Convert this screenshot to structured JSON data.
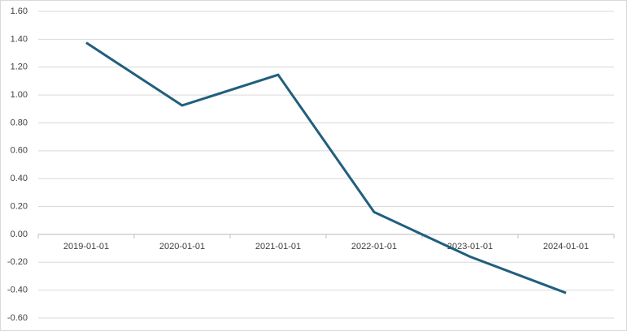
{
  "chart_data": {
    "type": "line",
    "categories": [
      "2019-01-01",
      "2020-01-01",
      "2021-01-01",
      "2022-01-01",
      "2023-01-01",
      "2024-01-01"
    ],
    "series": [
      {
        "color": "#205f7e",
        "values": [
          1.375,
          0.925,
          1.145,
          0.16,
          -0.16,
          -0.42
        ]
      }
    ],
    "ylim": [
      -0.6,
      1.6
    ],
    "yticks": [
      {
        "value": -0.6,
        "label": "-0.60"
      },
      {
        "value": -0.4,
        "label": "-0.40"
      },
      {
        "value": -0.2,
        "label": "-0.20"
      },
      {
        "value": 0,
        "label": "0.00"
      },
      {
        "value": 0.2,
        "label": "0.20"
      },
      {
        "value": 0.4,
        "label": "0.40"
      },
      {
        "value": 0.6,
        "label": "0.60"
      },
      {
        "value": 0.8,
        "label": "0.80"
      },
      {
        "value": 1.0,
        "label": "1.00"
      },
      {
        "value": 1.2,
        "label": "1.20"
      },
      {
        "value": 1.4,
        "label": "1.40"
      },
      {
        "value": 1.6,
        "label": "1.60"
      }
    ],
    "grid": true
  }
}
